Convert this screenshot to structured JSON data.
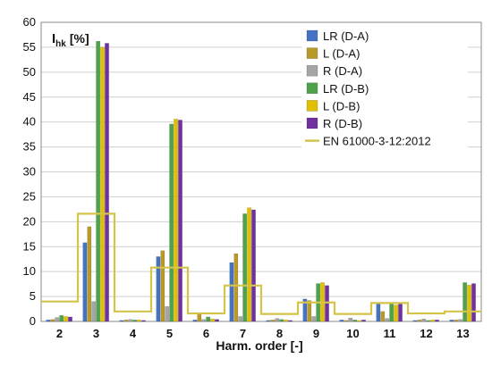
{
  "chart_data": {
    "type": "bar",
    "categories": [
      "2",
      "3",
      "4",
      "5",
      "6",
      "7",
      "8",
      "9",
      "10",
      "11",
      "12",
      "13"
    ],
    "ylabel_main": "I",
    "ylabel_sub": "hk",
    "ylabel_unit": "[%]",
    "xlabel": "Harm. order [-]",
    "ylim": [
      0,
      60
    ],
    "yticks": [
      0,
      5,
      10,
      15,
      20,
      25,
      30,
      35,
      40,
      45,
      50,
      55,
      60
    ],
    "grid": true,
    "legend_position": "top-right",
    "series": [
      {
        "name": "LR (D-A)",
        "color": "#4472c4",
        "values": [
          0.3,
          15.8,
          0.2,
          13.0,
          0.3,
          11.8,
          0.2,
          4.5,
          0.3,
          3.6,
          0.2,
          0.3
        ]
      },
      {
        "name": "L (D-A)",
        "color": "#b89a2a",
        "values": [
          0.4,
          19.0,
          0.3,
          14.2,
          1.5,
          13.6,
          0.3,
          4.2,
          0.2,
          2.0,
          0.3,
          0.3
        ]
      },
      {
        "name": "R (D-A)",
        "color": "#a5a5a5",
        "values": [
          0.8,
          4.0,
          0.4,
          3.0,
          0.4,
          1.0,
          0.6,
          1.0,
          0.7,
          0.6,
          0.5,
          0.4
        ]
      },
      {
        "name": "LR (D-B)",
        "color": "#4ea24a",
        "values": [
          1.2,
          56.2,
          0.3,
          39.6,
          0.9,
          21.6,
          0.4,
          7.6,
          0.3,
          3.5,
          0.2,
          7.8
        ]
      },
      {
        "name": "L (D-B)",
        "color": "#e0c000",
        "values": [
          1.0,
          55.0,
          0.3,
          40.6,
          0.5,
          22.8,
          0.3,
          7.8,
          0.2,
          3.3,
          0.3,
          7.3
        ]
      },
      {
        "name": "R (D-B)",
        "color": "#7030a0",
        "values": [
          0.9,
          55.8,
          0.2,
          40.4,
          0.4,
          22.4,
          0.2,
          7.2,
          0.3,
          3.8,
          0.3,
          7.6
        ]
      },
      {
        "name": "EN 61000-3-12:2012",
        "color": "#d4c44a",
        "type": "step-line",
        "values": [
          4.0,
          21.6,
          2.0,
          10.8,
          1.6,
          7.2,
          1.5,
          3.8,
          1.5,
          3.7,
          1.6,
          2.0
        ]
      }
    ]
  }
}
